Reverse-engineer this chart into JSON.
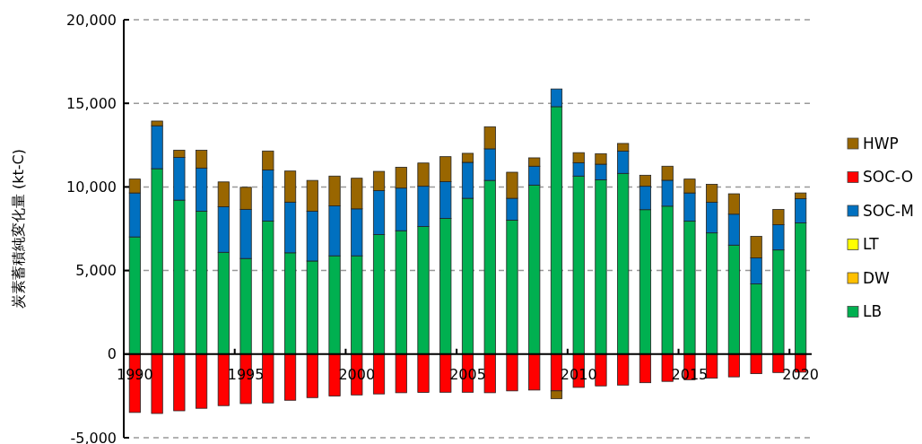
{
  "chart_data": {
    "type": "bar",
    "stacked": true,
    "ylabel": "炭素蓄積純変化量 (kt-C)",
    "categories": [
      "1990",
      null,
      null,
      null,
      null,
      "1995",
      null,
      null,
      null,
      null,
      "2000",
      null,
      null,
      null,
      null,
      "2005",
      null,
      null,
      null,
      null,
      "2010",
      null,
      null,
      null,
      null,
      "2015",
      null,
      null,
      null,
      null,
      "2020"
    ],
    "ylim": [
      -5000,
      20000
    ],
    "yticks": [
      {
        "value": -5000,
        "label": "-5,000"
      },
      0,
      {
        "value": 5000,
        "label": "5,000"
      },
      {
        "value": 10000,
        "label": "10,000"
      },
      {
        "value": 15000,
        "label": "15,000"
      },
      {
        "value": 20000,
        "label": "20,000"
      }
    ],
    "grid": "y",
    "legend": "right",
    "series": [
      {
        "name": "LB",
        "color": "#00b050",
        "values": [
          7010,
          11090,
          9210,
          8550,
          6090,
          5720,
          7960,
          6060,
          5570,
          5880,
          5880,
          7150,
          7380,
          7630,
          8120,
          9320,
          10390,
          8010,
          10110,
          14800,
          10650,
          10430,
          10810,
          8640,
          8850,
          7950,
          7250,
          6520,
          4200,
          6230,
          7850
        ]
      },
      {
        "name": "DW",
        "color": "#ffc000",
        "values": [
          0,
          0,
          0,
          0,
          0,
          0,
          0,
          0,
          0,
          0,
          0,
          0,
          0,
          0,
          0,
          0,
          0,
          0,
          0,
          0,
          0,
          0,
          0,
          0,
          0,
          0,
          0,
          0,
          0,
          0,
          0
        ]
      },
      {
        "name": "LT",
        "color": "#ffff00",
        "values": [
          0,
          0,
          0,
          0,
          0,
          0,
          0,
          0,
          0,
          0,
          0,
          0,
          0,
          0,
          0,
          0,
          0,
          0,
          0,
          0,
          0,
          0,
          0,
          0,
          0,
          0,
          0,
          0,
          0,
          0,
          0
        ]
      },
      {
        "name": "SOC-M",
        "color": "#0070c0",
        "values": [
          2630,
          2570,
          2560,
          2580,
          2730,
          2940,
          3060,
          3030,
          2980,
          2990,
          2810,
          2630,
          2550,
          2410,
          2200,
          2150,
          1890,
          1310,
          1130,
          1060,
          800,
          930,
          1330,
          1400,
          1550,
          1690,
          1830,
          1850,
          1560,
          1510,
          1450
        ]
      },
      {
        "name": "SOC-O",
        "color": "#ff0000",
        "values": [
          -3490,
          -3550,
          -3390,
          -3240,
          -3080,
          -2960,
          -2920,
          -2760,
          -2600,
          -2510,
          -2440,
          -2380,
          -2310,
          -2290,
          -2280,
          -2280,
          -2310,
          -2200,
          -2150,
          -2200,
          -1990,
          -1900,
          -1850,
          -1710,
          -1630,
          -1530,
          -1440,
          -1360,
          -1170,
          -1100,
          -1080
        ]
      },
      {
        "name": "HWP",
        "color": "#996600",
        "values": [
          830,
          280,
          430,
          1060,
          1480,
          1320,
          1130,
          1860,
          1840,
          1780,
          1830,
          1150,
          1250,
          1390,
          1490,
          540,
          1320,
          1560,
          500,
          -460,
          600,
          630,
          460,
          660,
          840,
          830,
          1080,
          1220,
          1280,
          910,
          340
        ]
      }
    ]
  }
}
